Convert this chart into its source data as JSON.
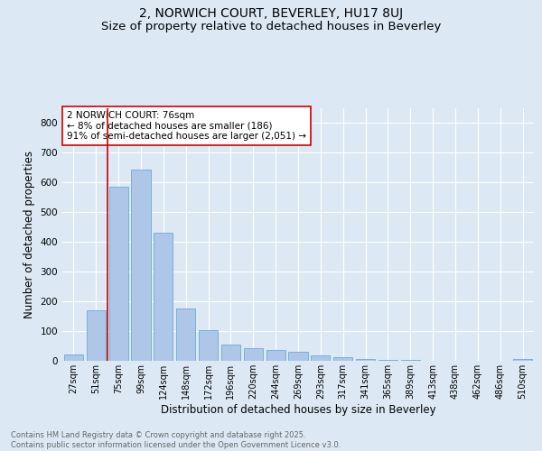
{
  "title1": "2, NORWICH COURT, BEVERLEY, HU17 8UJ",
  "title2": "Size of property relative to detached houses in Beverley",
  "xlabel": "Distribution of detached houses by size in Beverley",
  "ylabel": "Number of detached properties",
  "categories": [
    "27sqm",
    "51sqm",
    "75sqm",
    "99sqm",
    "124sqm",
    "148sqm",
    "172sqm",
    "196sqm",
    "220sqm",
    "244sqm",
    "269sqm",
    "293sqm",
    "317sqm",
    "341sqm",
    "365sqm",
    "389sqm",
    "413sqm",
    "438sqm",
    "462sqm",
    "486sqm",
    "510sqm"
  ],
  "values": [
    20,
    170,
    585,
    645,
    430,
    175,
    102,
    55,
    42,
    36,
    30,
    17,
    11,
    5,
    3,
    2,
    1,
    1,
    0,
    0,
    7
  ],
  "bar_color": "#aec6e8",
  "bar_edge_color": "#6aaad4",
  "vline_x_index": 2,
  "vline_color": "#cc0000",
  "annotation_text": "2 NORWICH COURT: 76sqm\n← 8% of detached houses are smaller (186)\n91% of semi-detached houses are larger (2,051) →",
  "annotation_box_color": "#ffffff",
  "annotation_box_edge": "#cc0000",
  "bg_color": "#dce9f5",
  "plot_bg_color": "#dce9f5",
  "grid_color": "#ffffff",
  "footer": "Contains HM Land Registry data © Crown copyright and database right 2025.\nContains public sector information licensed under the Open Government Licence v3.0.",
  "ylim": [
    0,
    850
  ],
  "title_fontsize": 10,
  "subtitle_fontsize": 9.5,
  "tick_fontsize": 7,
  "label_fontsize": 8.5,
  "annotation_fontsize": 7.5,
  "footer_fontsize": 6,
  "footer_color": "#666666"
}
